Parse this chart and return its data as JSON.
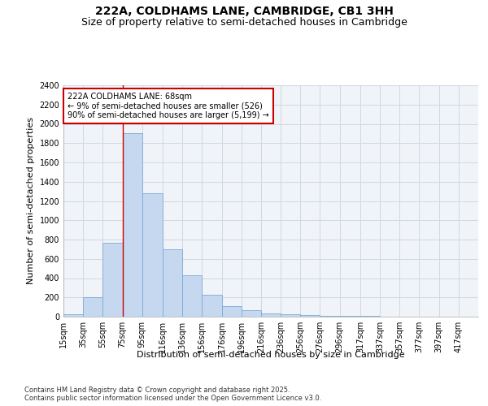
{
  "title": "222A, COLDHAMS LANE, CAMBRIDGE, CB1 3HH",
  "subtitle": "Size of property relative to semi-detached houses in Cambridge",
  "xlabel": "Distribution of semi-detached houses by size in Cambridge",
  "ylabel": "Number of semi-detached properties",
  "footnote1": "Contains HM Land Registry data © Crown copyright and database right 2025.",
  "footnote2": "Contains public sector information licensed under the Open Government Licence v3.0.",
  "bins": [
    15,
    35,
    55,
    75,
    95,
    116,
    136,
    156,
    176,
    196,
    216,
    236,
    256,
    276,
    296,
    317,
    337,
    357,
    377,
    397,
    417
  ],
  "bin_labels": [
    "15sqm",
    "35sqm",
    "55sqm",
    "75sqm",
    "95sqm",
    "116sqm",
    "136sqm",
    "156sqm",
    "176sqm",
    "196sqm",
    "216sqm",
    "236sqm",
    "256sqm",
    "276sqm",
    "296sqm",
    "317sqm",
    "337sqm",
    "357sqm",
    "377sqm",
    "397sqm",
    "417sqm"
  ],
  "values": [
    25,
    200,
    770,
    1900,
    1280,
    700,
    430,
    230,
    110,
    65,
    35,
    28,
    18,
    12,
    8,
    5,
    3,
    3,
    2,
    2,
    2
  ],
  "bar_color": "#c5d8f0",
  "bar_edge_color": "#7aaad4",
  "vline_x": 75,
  "vline_color": "#cc0000",
  "annotation_text": "222A COLDHAMS LANE: 68sqm\n← 9% of semi-detached houses are smaller (526)\n90% of semi-detached houses are larger (5,199) →",
  "annotation_box_color": "#ffffff",
  "annotation_box_edge_color": "#cc0000",
  "ylim": [
    0,
    2400
  ],
  "yticks": [
    0,
    200,
    400,
    600,
    800,
    1000,
    1200,
    1400,
    1600,
    1800,
    2000,
    2200,
    2400
  ],
  "background_color": "#ffffff",
  "plot_background_color": "#f0f4f8",
  "grid_color": "#d0d8e4",
  "title_fontsize": 10,
  "subtitle_fontsize": 9,
  "axis_label_fontsize": 8,
  "tick_fontsize": 7,
  "annotation_fontsize": 7,
  "footnote_fontsize": 6
}
